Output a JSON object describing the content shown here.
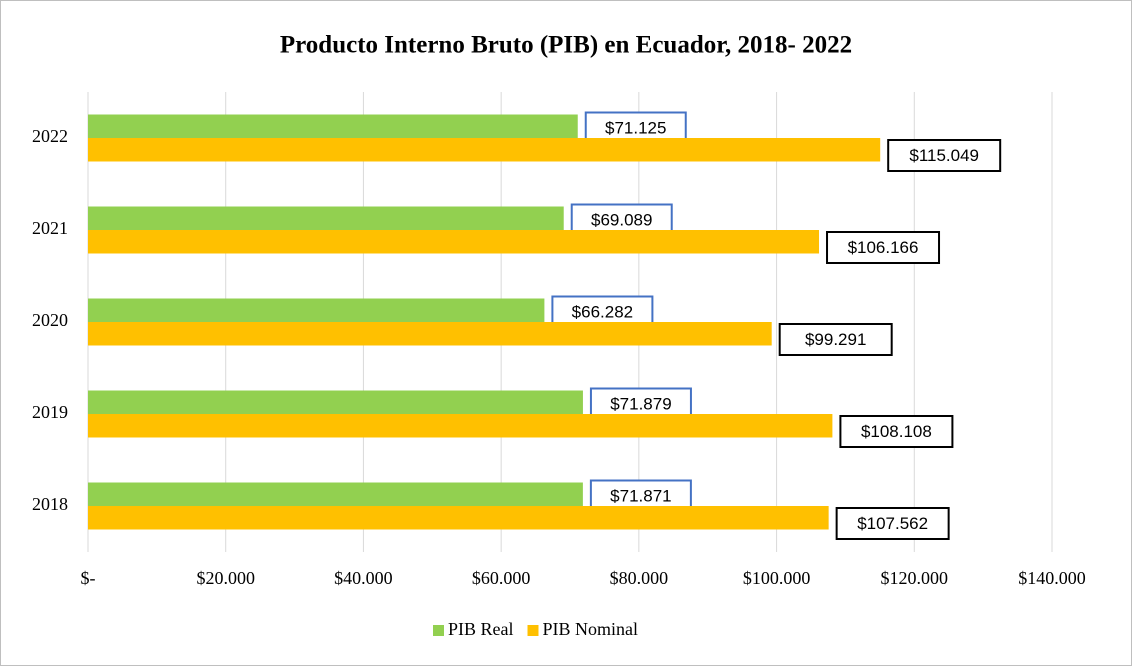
{
  "chart_data": {
    "type": "bar",
    "orientation": "horizontal",
    "title": "Producto Interno Bruto (PIB) en Ecuador, 2018- 2022",
    "categories": [
      "2018",
      "2019",
      "2020",
      "2021",
      "2022"
    ],
    "series": [
      {
        "name": "PIB Real",
        "color": "#92d050",
        "label_border": "#4472c4",
        "values": [
          71871,
          71879,
          66282,
          69089,
          71125
        ],
        "value_labels": [
          "$71.871",
          "$71.879",
          "$66.282",
          "$69.089",
          "$71.125"
        ]
      },
      {
        "name": "PIB Nominal",
        "color": "#ffc000",
        "label_border": "#000000",
        "values": [
          107562,
          108108,
          99291,
          106166,
          115049
        ],
        "value_labels": [
          "$107.562",
          "$108.108",
          "$99.291",
          "$106.166",
          "$115.049"
        ]
      }
    ],
    "xlim": [
      0,
      140000
    ],
    "xticks": [
      {
        "value": 0,
        "label": "$-"
      },
      {
        "value": 20000,
        "label": "$20.000"
      },
      {
        "value": 40000,
        "label": "$40.000"
      },
      {
        "value": 60000,
        "label": "$60.000"
      },
      {
        "value": 80000,
        "label": "$80.000"
      },
      {
        "value": 100000,
        "label": "$100.000"
      },
      {
        "value": 120000,
        "label": "$120.000"
      },
      {
        "value": 140000,
        "label": "$140.000"
      }
    ],
    "grid": true,
    "legend": "bottom"
  }
}
